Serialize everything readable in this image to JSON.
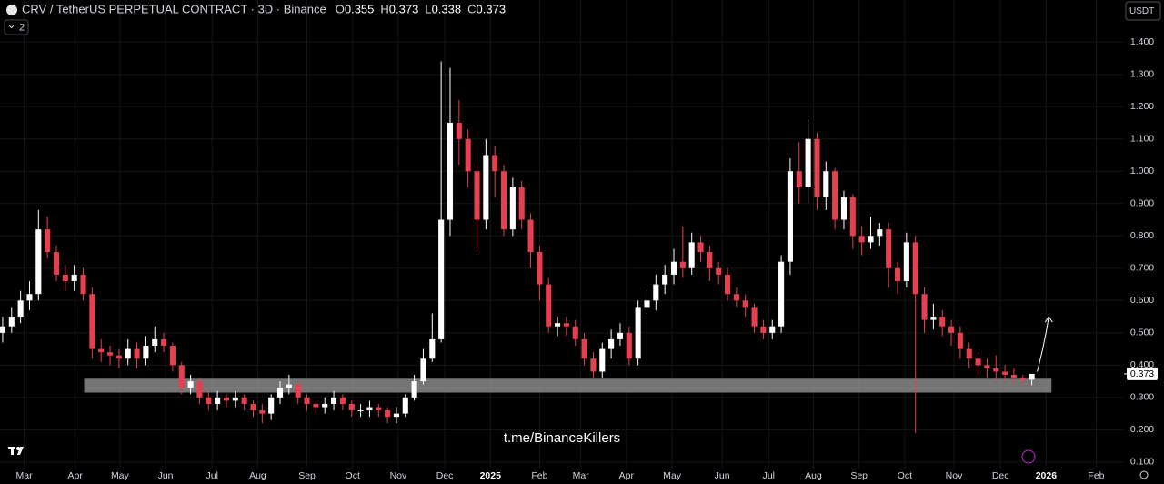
{
  "header": {
    "symbol": "CRV / TetherUS PERPETUAL CONTRACT · 3D · Binance",
    "ohlc": [
      {
        "label": "O",
        "value": "0.355"
      },
      {
        "label": "H",
        "value": "0.373"
      },
      {
        "label": "L",
        "value": "0.338"
      },
      {
        "label": "C",
        "value": "0.373"
      }
    ],
    "indicator_count": "2",
    "currency": "USDT"
  },
  "watermark": "t.me/BinanceKillers",
  "chart_data": {
    "type": "candlestick",
    "up_color": "#ffffff",
    "down_color": "#e5404f",
    "grid": true,
    "xlim": [
      -0.3,
      125.2
    ],
    "ylim": [
      0.08,
      1.53
    ],
    "yticks": [
      {
        "value": 0.1,
        "label": "0.100"
      },
      {
        "value": 0.2,
        "label": "0.200"
      },
      {
        "value": 0.3,
        "label": "0.300"
      },
      {
        "value": 0.4,
        "label": "0.400"
      },
      {
        "value": 0.5,
        "label": "0.500"
      },
      {
        "value": 0.6,
        "label": "0.600"
      },
      {
        "value": 0.7,
        "label": "0.700"
      },
      {
        "value": 0.8,
        "label": "0.800"
      },
      {
        "value": 0.9,
        "label": "0.900"
      },
      {
        "value": 1,
        "label": "1.000"
      },
      {
        "value": 1.1,
        "label": "1.100"
      },
      {
        "value": 1.2,
        "label": "1.200"
      },
      {
        "value": 1.3,
        "label": "1.300"
      },
      {
        "value": 1.4,
        "label": "1.400"
      }
    ],
    "xticks": [
      {
        "value": 2.4,
        "label": "Mar"
      },
      {
        "value": 8.1,
        "label": "Apr"
      },
      {
        "value": 13.1,
        "label": "May"
      },
      {
        "value": 18.2,
        "label": "Jun"
      },
      {
        "value": 23.4,
        "label": "Jul"
      },
      {
        "value": 28.5,
        "label": "Aug"
      },
      {
        "value": 34.0,
        "label": "Sep"
      },
      {
        "value": 39.1,
        "label": "Oct"
      },
      {
        "value": 44.2,
        "label": "Nov"
      },
      {
        "value": 49.4,
        "label": "Dec"
      },
      {
        "value": 54.5,
        "label": "2025"
      },
      {
        "value": 60.0,
        "label": "Feb"
      },
      {
        "value": 64.6,
        "label": "Mar"
      },
      {
        "value": 69.7,
        "label": "Apr"
      },
      {
        "value": 74.8,
        "label": "May"
      },
      {
        "value": 80.4,
        "label": "Jun"
      },
      {
        "value": 85.6,
        "label": "Jul"
      },
      {
        "value": 90.6,
        "label": "Aug"
      },
      {
        "value": 95.7,
        "label": "Sep"
      },
      {
        "value": 100.8,
        "label": "Oct"
      },
      {
        "value": 106.3,
        "label": "Nov"
      },
      {
        "value": 111.5,
        "label": "Dec"
      },
      {
        "value": 116.6,
        "label": "2026"
      },
      {
        "value": 122.2,
        "label": "Feb"
      }
    ],
    "open": [
      0.5,
      0.52,
      0.55,
      0.6,
      0.62,
      0.82,
      0.75,
      0.68,
      0.66,
      0.68,
      0.62,
      0.45,
      0.44,
      0.43,
      0.42,
      0.45,
      0.42,
      0.46,
      0.48,
      0.46,
      0.4,
      0.33,
      0.35,
      0.3,
      0.28,
      0.3,
      0.29,
      0.3,
      0.28,
      0.26,
      0.25,
      0.3,
      0.33,
      0.34,
      0.3,
      0.28,
      0.27,
      0.28,
      0.3,
      0.28,
      0.26,
      0.26,
      0.27,
      0.26,
      0.24,
      0.25,
      0.3,
      0.35,
      0.42,
      0.48,
      0.85,
      1.15,
      1.1,
      1.0,
      0.85,
      1.05,
      1.0,
      0.82,
      0.95,
      0.85,
      0.75,
      0.65,
      0.52,
      0.53,
      0.52,
      0.48,
      0.42,
      0.38,
      0.45,
      0.48,
      0.5,
      0.42,
      0.58,
      0.6,
      0.65,
      0.68,
      0.72,
      0.7,
      0.78,
      0.75,
      0.7,
      0.68,
      0.62,
      0.6,
      0.58,
      0.52,
      0.5,
      0.52,
      0.72,
      1.0,
      0.95,
      1.1,
      0.92,
      1.0,
      0.85,
      0.92,
      0.8,
      0.78,
      0.8,
      0.82,
      0.7,
      0.66,
      0.78,
      0.62,
      0.54,
      0.55,
      0.52,
      0.5,
      0.45,
      0.42,
      0.4,
      0.39,
      0.38,
      0.37,
      0.36,
      0.355
    ],
    "high": [
      0.55,
      0.58,
      0.63,
      0.66,
      0.88,
      0.86,
      0.77,
      0.71,
      0.71,
      0.7,
      0.64,
      0.48,
      0.46,
      0.45,
      0.48,
      0.47,
      0.49,
      0.52,
      0.5,
      0.47,
      0.41,
      0.37,
      0.36,
      0.32,
      0.32,
      0.31,
      0.32,
      0.31,
      0.29,
      0.28,
      0.31,
      0.35,
      0.37,
      0.35,
      0.31,
      0.29,
      0.3,
      0.32,
      0.31,
      0.29,
      0.28,
      0.29,
      0.28,
      0.27,
      0.27,
      0.31,
      0.37,
      0.45,
      0.56,
      1.34,
      1.32,
      1.22,
      1.13,
      1.02,
      1.1,
      1.08,
      1.02,
      0.98,
      0.97,
      0.87,
      0.77,
      0.67,
      0.55,
      0.55,
      0.54,
      0.5,
      0.44,
      0.47,
      0.51,
      0.53,
      0.52,
      0.6,
      0.63,
      0.68,
      0.71,
      0.76,
      0.83,
      0.81,
      0.8,
      0.77,
      0.72,
      0.7,
      0.64,
      0.62,
      0.59,
      0.54,
      0.54,
      0.74,
      1.04,
      1.09,
      1.16,
      1.12,
      1.03,
      1.01,
      0.94,
      0.93,
      0.83,
      0.86,
      0.84,
      0.84,
      0.72,
      0.81,
      0.8,
      0.64,
      0.59,
      0.57,
      0.54,
      0.52,
      0.47,
      0.44,
      0.42,
      0.43,
      0.4,
      0.39,
      0.37,
      0.373
    ],
    "low": [
      0.47,
      0.5,
      0.53,
      0.57,
      0.6,
      0.73,
      0.66,
      0.63,
      0.63,
      0.6,
      0.42,
      0.41,
      0.4,
      0.39,
      0.4,
      0.39,
      0.4,
      0.44,
      0.44,
      0.38,
      0.31,
      0.31,
      0.28,
      0.26,
      0.26,
      0.27,
      0.27,
      0.26,
      0.24,
      0.22,
      0.23,
      0.28,
      0.31,
      0.28,
      0.26,
      0.25,
      0.25,
      0.26,
      0.26,
      0.24,
      0.24,
      0.24,
      0.24,
      0.22,
      0.22,
      0.24,
      0.29,
      0.34,
      0.41,
      0.47,
      0.8,
      1.02,
      0.95,
      0.75,
      0.82,
      0.92,
      0.8,
      0.8,
      0.82,
      0.7,
      0.6,
      0.5,
      0.49,
      0.49,
      0.46,
      0.4,
      0.36,
      0.36,
      0.42,
      0.46,
      0.4,
      0.4,
      0.56,
      0.57,
      0.62,
      0.65,
      0.67,
      0.68,
      0.72,
      0.66,
      0.65,
      0.6,
      0.58,
      0.55,
      0.5,
      0.48,
      0.48,
      0.5,
      0.68,
      0.9,
      0.9,
      0.88,
      0.88,
      0.82,
      0.82,
      0.76,
      0.74,
      0.76,
      0.77,
      0.64,
      0.62,
      0.64,
      0.19,
      0.5,
      0.51,
      0.49,
      0.46,
      0.42,
      0.39,
      0.37,
      0.36,
      0.35,
      0.35,
      0.34,
      0.34,
      0.338
    ],
    "close": [
      0.52,
      0.55,
      0.6,
      0.62,
      0.82,
      0.75,
      0.68,
      0.66,
      0.68,
      0.62,
      0.45,
      0.44,
      0.43,
      0.42,
      0.45,
      0.42,
      0.46,
      0.48,
      0.46,
      0.4,
      0.33,
      0.35,
      0.3,
      0.28,
      0.3,
      0.29,
      0.3,
      0.28,
      0.26,
      0.25,
      0.3,
      0.33,
      0.34,
      0.3,
      0.28,
      0.27,
      0.28,
      0.3,
      0.28,
      0.26,
      0.26,
      0.27,
      0.26,
      0.24,
      0.25,
      0.3,
      0.35,
      0.42,
      0.48,
      0.85,
      1.15,
      1.1,
      1.0,
      0.85,
      1.05,
      1.0,
      0.82,
      0.95,
      0.85,
      0.75,
      0.65,
      0.52,
      0.53,
      0.52,
      0.48,
      0.42,
      0.38,
      0.45,
      0.48,
      0.5,
      0.42,
      0.58,
      0.6,
      0.65,
      0.68,
      0.72,
      0.7,
      0.78,
      0.75,
      0.7,
      0.68,
      0.62,
      0.6,
      0.58,
      0.52,
      0.5,
      0.52,
      0.72,
      1.0,
      0.95,
      1.1,
      0.92,
      1.0,
      0.85,
      0.92,
      0.8,
      0.78,
      0.8,
      0.82,
      0.7,
      0.66,
      0.78,
      0.62,
      0.54,
      0.55,
      0.52,
      0.5,
      0.45,
      0.42,
      0.4,
      0.39,
      0.38,
      0.37,
      0.36,
      0.355,
      0.373
    ],
    "support_zone": {
      "low": 0.315,
      "high": 0.358,
      "x": [
        9.1,
        117.2
      ]
    },
    "projection": {
      "x": [
        115.6,
        116.9
      ],
      "y": [
        0.38,
        0.55
      ]
    },
    "price_label": {
      "value": 0.373,
      "label": "0.373"
    }
  }
}
